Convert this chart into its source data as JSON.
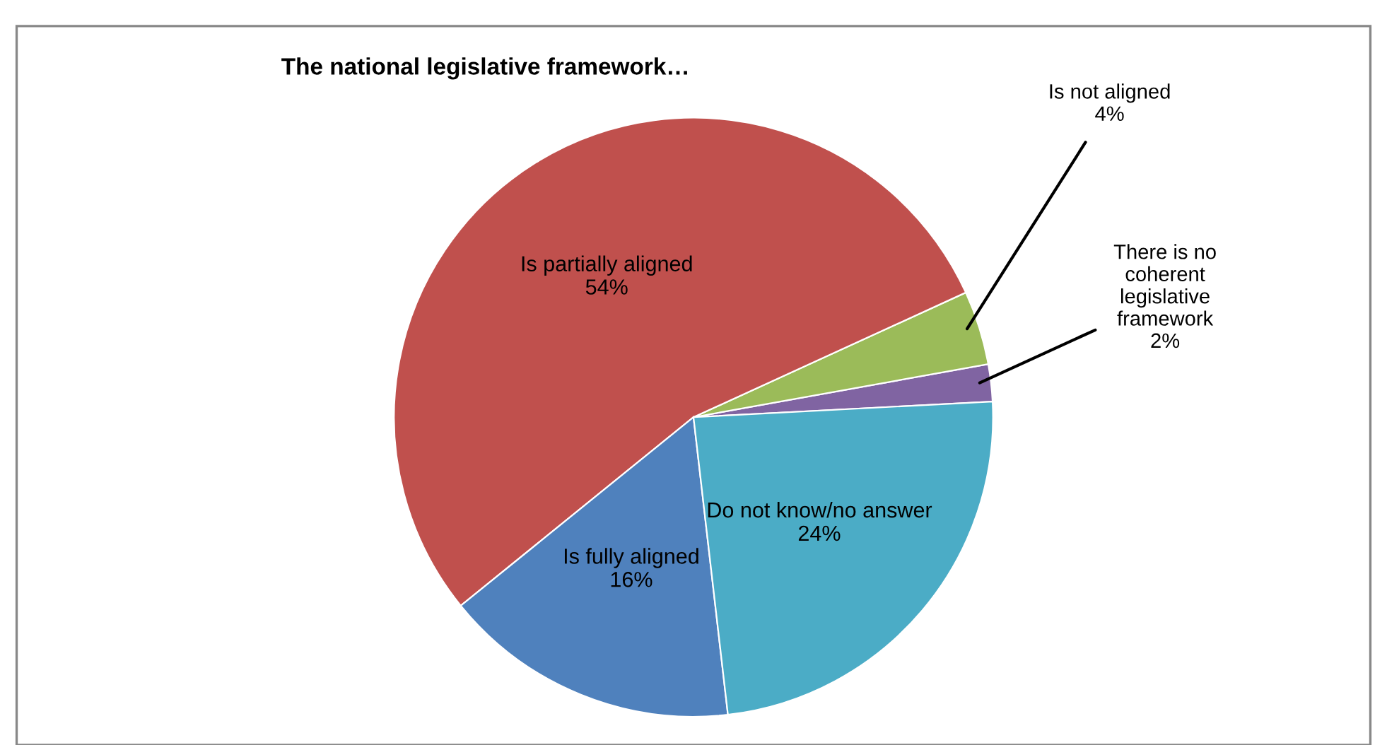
{
  "chart_data": {
    "type": "pie",
    "title": "The national legislative framework…",
    "categories": [
      "There is no\ncoherent\nlegislative\nframework",
      "Is not aligned",
      "Is partially aligned",
      "Is fully aligned",
      "Do not know/no answer"
    ],
    "values": [
      2,
      4,
      54,
      16,
      24
    ],
    "value_labels": [
      "2%",
      "4%",
      "54%",
      "16%",
      "24%"
    ],
    "colors": [
      "#8064a2",
      "#9bbb59",
      "#c0504d",
      "#4f81bd",
      "#4bacc6"
    ]
  }
}
